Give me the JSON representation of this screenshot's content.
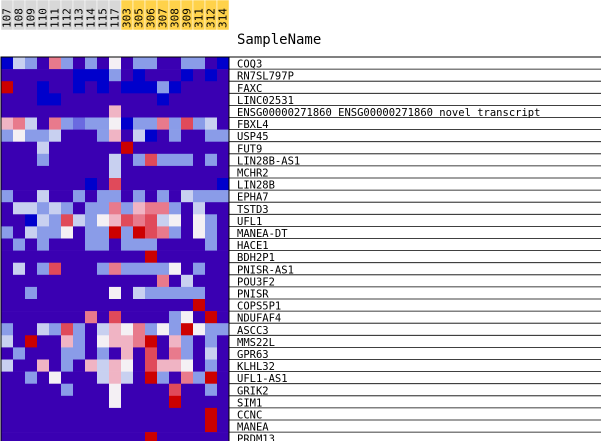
{
  "chart_data": {
    "type": "heatmap",
    "header": "SampleName",
    "columns": [
      "107",
      "108",
      "109",
      "110",
      "111",
      "112",
      "113",
      "114",
      "115",
      "117",
      "303",
      "305",
      "306",
      "307",
      "308",
      "309",
      "311",
      "312",
      "314"
    ],
    "column_highlight": [
      false,
      false,
      false,
      false,
      false,
      false,
      false,
      false,
      false,
      false,
      true,
      true,
      true,
      true,
      true,
      true,
      true,
      true,
      true
    ],
    "rows": [
      "COQ3",
      "RN7SL797P",
      "FAXC",
      "LINC02531",
      "ENSG00000271860    ENSG00000271860 novel transcript",
      "FBXL4",
      "USP45",
      "FUT9",
      "LIN28B-AS1",
      "MCHR2",
      "LIN28B",
      "EPHA7",
      "TSTD3",
      "UFL1",
      "MANEA-DT",
      "HACE1",
      "BDH2P1",
      "PNISR-AS1",
      "POU3F2",
      "PNISR",
      "COPS5P1",
      "NDUFAF4",
      "ASCC3",
      "MMS22L",
      "GPR63",
      "KLHL32",
      "UFL1-AS1",
      "GRIK2",
      "SIM1",
      "CCNC",
      "MANEA",
      "PRDM13"
    ],
    "values": [
      [
        0,
        4,
        3,
        1,
        7,
        3,
        1,
        3,
        1,
        5,
        1,
        3,
        3,
        1,
        1,
        3,
        3,
        1,
        0
      ],
      [
        1,
        1,
        1,
        1,
        1,
        1,
        0,
        0,
        0,
        3,
        1,
        0,
        1,
        1,
        1,
        0,
        1,
        0,
        1
      ],
      [
        9,
        1,
        1,
        0,
        1,
        1,
        0,
        1,
        0,
        1,
        0,
        0,
        0,
        3,
        0,
        1,
        1,
        1,
        1
      ],
      [
        1,
        1,
        1,
        0,
        0,
        1,
        1,
        1,
        1,
        1,
        1,
        1,
        1,
        0,
        1,
        1,
        1,
        1,
        1
      ],
      [
        1,
        1,
        1,
        1,
        1,
        1,
        1,
        1,
        1,
        6,
        1,
        1,
        1,
        1,
        1,
        1,
        1,
        1,
        1
      ],
      [
        6,
        7,
        4,
        1,
        7,
        3,
        2,
        3,
        3,
        5,
        0,
        3,
        3,
        7,
        3,
        8,
        3,
        4,
        1
      ],
      [
        3,
        5,
        3,
        3,
        4,
        1,
        1,
        1,
        3,
        6,
        1,
        4,
        0,
        1,
        3,
        1,
        1,
        3,
        3
      ],
      [
        1,
        1,
        1,
        4,
        1,
        1,
        1,
        1,
        1,
        1,
        9,
        1,
        1,
        1,
        1,
        1,
        1,
        1,
        1
      ],
      [
        1,
        1,
        1,
        3,
        1,
        1,
        1,
        1,
        1,
        4,
        1,
        3,
        8,
        3,
        3,
        3,
        1,
        3,
        1
      ],
      [
        1,
        1,
        1,
        1,
        1,
        1,
        1,
        1,
        1,
        4,
        1,
        1,
        1,
        1,
        1,
        1,
        1,
        1,
        1
      ],
      [
        1,
        1,
        1,
        1,
        1,
        1,
        1,
        0,
        1,
        8,
        1,
        1,
        1,
        1,
        1,
        1,
        1,
        1,
        0
      ],
      [
        3,
        1,
        1,
        4,
        1,
        1,
        3,
        1,
        3,
        3,
        1,
        3,
        1,
        3,
        1,
        4,
        3,
        3,
        3
      ],
      [
        1,
        4,
        4,
        3,
        4,
        3,
        1,
        3,
        3,
        7,
        3,
        6,
        7,
        7,
        3,
        1,
        4,
        1,
        1
      ],
      [
        1,
        1,
        0,
        4,
        3,
        8,
        4,
        3,
        5,
        6,
        8,
        7,
        8,
        4,
        5,
        1,
        5,
        3,
        1
      ],
      [
        3,
        1,
        4,
        3,
        3,
        5,
        1,
        3,
        3,
        9,
        3,
        9,
        8,
        7,
        3,
        1,
        5,
        3,
        1
      ],
      [
        1,
        3,
        1,
        3,
        1,
        1,
        1,
        3,
        3,
        1,
        3,
        3,
        3,
        1,
        1,
        1,
        1,
        3,
        1
      ],
      [
        1,
        1,
        1,
        1,
        1,
        1,
        1,
        1,
        1,
        1,
        1,
        1,
        9,
        1,
        1,
        1,
        1,
        1,
        1
      ],
      [
        1,
        4,
        1,
        3,
        8,
        1,
        1,
        1,
        3,
        7,
        3,
        3,
        3,
        3,
        5,
        1,
        3,
        1,
        1
      ],
      [
        1,
        1,
        1,
        1,
        1,
        1,
        1,
        1,
        1,
        1,
        1,
        1,
        1,
        7,
        1,
        4,
        1,
        1,
        1
      ],
      [
        1,
        1,
        3,
        1,
        1,
        1,
        1,
        1,
        1,
        5,
        1,
        4,
        3,
        3,
        3,
        3,
        3,
        1,
        1
      ],
      [
        1,
        1,
        1,
        1,
        1,
        1,
        1,
        1,
        1,
        1,
        1,
        1,
        1,
        1,
        1,
        1,
        9,
        1,
        1
      ],
      [
        1,
        1,
        1,
        1,
        1,
        1,
        1,
        7,
        1,
        8,
        1,
        1,
        1,
        1,
        3,
        5,
        1,
        9,
        1
      ],
      [
        3,
        1,
        1,
        4,
        3,
        8,
        3,
        1,
        4,
        6,
        5,
        7,
        3,
        5,
        3,
        9,
        5,
        3,
        3
      ],
      [
        4,
        1,
        9,
        1,
        1,
        6,
        3,
        1,
        5,
        6,
        6,
        7,
        9,
        1,
        6,
        3,
        1,
        3,
        1
      ],
      [
        1,
        3,
        1,
        1,
        1,
        3,
        3,
        1,
        3,
        1,
        6,
        1,
        8,
        1,
        7,
        3,
        1,
        4,
        1
      ],
      [
        4,
        1,
        1,
        6,
        1,
        3,
        1,
        6,
        4,
        6,
        5,
        1,
        8,
        6,
        6,
        5,
        1,
        3,
        1
      ],
      [
        1,
        1,
        3,
        1,
        5,
        1,
        1,
        1,
        4,
        6,
        4,
        1,
        9,
        3,
        1,
        7,
        3,
        9,
        1
      ],
      [
        1,
        1,
        1,
        1,
        1,
        3,
        1,
        1,
        1,
        5,
        1,
        1,
        1,
        1,
        8,
        1,
        1,
        3,
        1
      ],
      [
        1,
        1,
        1,
        1,
        1,
        1,
        1,
        1,
        1,
        5,
        1,
        1,
        1,
        1,
        9,
        1,
        1,
        1,
        1
      ],
      [
        1,
        1,
        1,
        1,
        1,
        1,
        1,
        1,
        1,
        1,
        1,
        1,
        1,
        1,
        1,
        1,
        1,
        9,
        1
      ],
      [
        1,
        1,
        1,
        1,
        1,
        1,
        1,
        1,
        1,
        1,
        1,
        1,
        1,
        1,
        1,
        1,
        1,
        9,
        1
      ],
      [
        1,
        1,
        1,
        1,
        1,
        1,
        1,
        1,
        1,
        1,
        1,
        1,
        9,
        1,
        1,
        1,
        1,
        1,
        1
      ]
    ],
    "color_scale": [
      "#0000cc",
      "#3a00b2",
      "#6a6ae0",
      "#8a9ce8",
      "#c8d0f0",
      "#f4f0f4",
      "#f0b4c4",
      "#e87a8c",
      "#e04a5a",
      "#cc0000"
    ],
    "header_color_highlight": "#ffd24a",
    "header_color_normal": "#d8d8d8"
  }
}
